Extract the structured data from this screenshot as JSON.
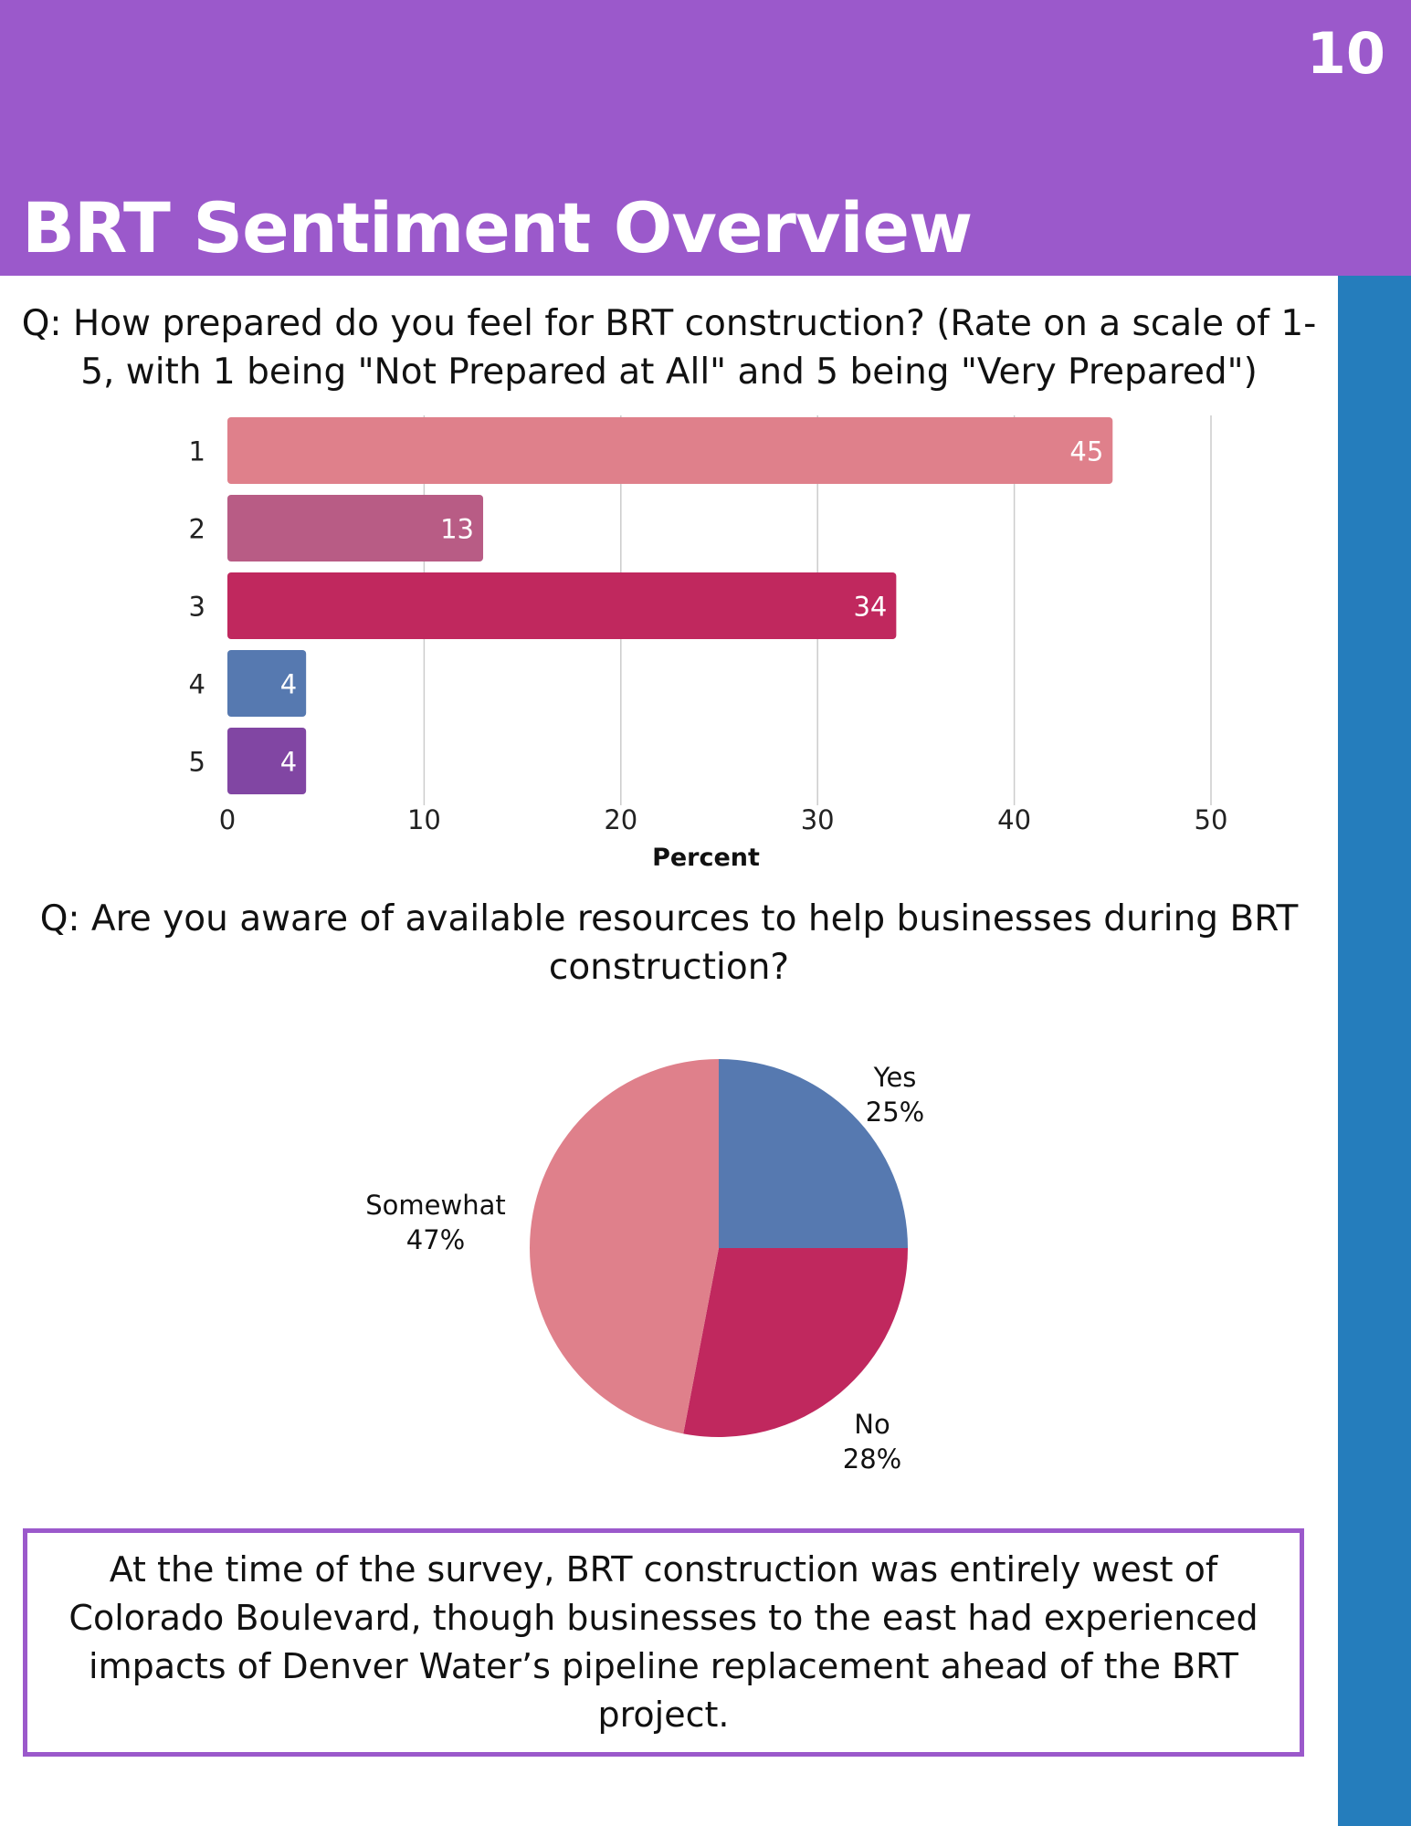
{
  "header": {
    "page_number": "10",
    "title": "BRT Sentiment Overview"
  },
  "colors": {
    "header": "#9b59cb",
    "sidebar": "#257dbc"
  },
  "chart_data": [
    {
      "type": "bar",
      "orientation": "horizontal",
      "title": "Q: How prepared do you feel for BRT construction? (Rate on a scale of 1-5, with 1 being \"Not Prepared at All\" and 5 being \"Very Prepared\")",
      "categories": [
        "1",
        "2",
        "3",
        "4",
        "5"
      ],
      "values": [
        45,
        13,
        34,
        4,
        4
      ],
      "colors": [
        "#df808b",
        "#b85c85",
        "#c0285e",
        "#5679b0",
        "#8146a3"
      ],
      "xlabel": "Percent",
      "xlim": [
        0,
        50
      ],
      "xticks": [
        "0",
        "10",
        "20",
        "30",
        "40",
        "50"
      ],
      "grid": true
    },
    {
      "type": "pie",
      "title": "Q: Are you aware of available resources to help businesses during BRT construction?",
      "slices": [
        {
          "label": "Yes",
          "value": 25,
          "pct": "25%",
          "color": "#5679b0"
        },
        {
          "label": "No",
          "value": 28,
          "pct": "28%",
          "color": "#c0285e"
        },
        {
          "label": "Somewhat",
          "value": 47,
          "pct": "47%",
          "color": "#df808b"
        }
      ]
    }
  ],
  "note": "At the time of the survey, BRT construction was entirely west of Colorado Boulevard, though businesses to the east had experienced impacts of Denver Water’s pipeline replacement ahead of the BRT project."
}
